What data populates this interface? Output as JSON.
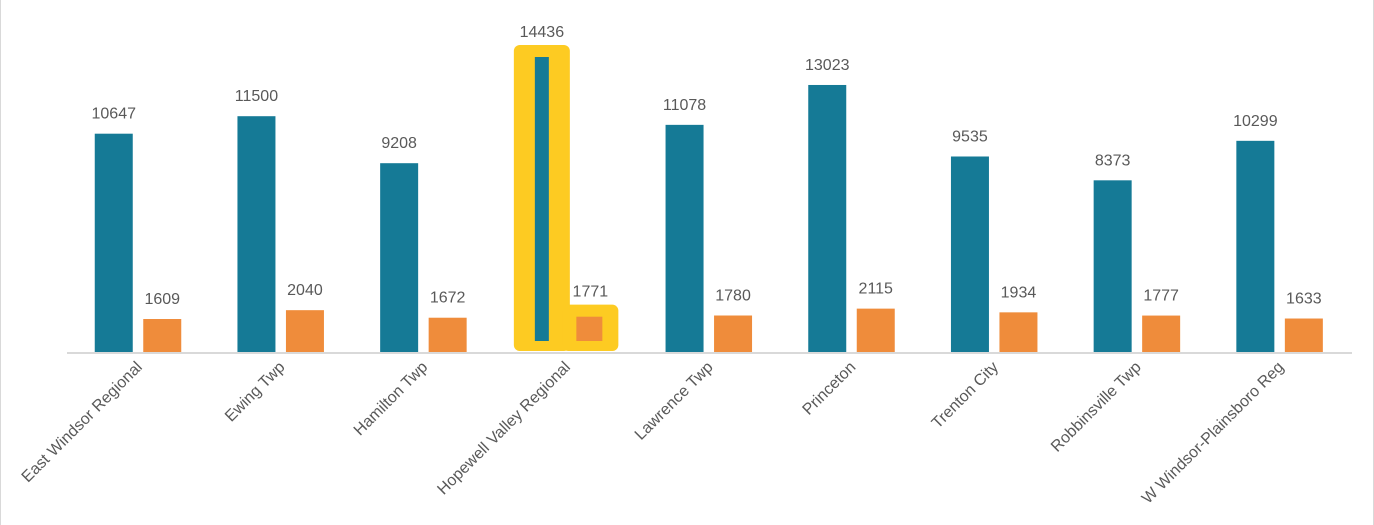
{
  "chart_data": {
    "type": "bar",
    "categories": [
      "East Windsor Regional",
      "Ewing Twp",
      "Hamilton Twp",
      "Hopewell Valley Regional",
      "Lawrence Twp",
      "Princeton",
      "Trenton City",
      "Robbinsville Twp",
      "W Windsor-Plainsboro Reg"
    ],
    "series": [
      {
        "values": [
          10647,
          11500,
          9208,
          14436,
          11078,
          13023,
          9535,
          8373,
          10299
        ],
        "color": "#157a96"
      },
      {
        "values": [
          1609,
          2040,
          1672,
          1771,
          1780,
          2115,
          1934,
          1777,
          1633
        ],
        "color": "#ef8c3b"
      }
    ],
    "highlight": {
      "category": "Hopewell Valley Regional",
      "color": "#fdcb22"
    },
    "data_labels": true,
    "legend": "none",
    "grid": false,
    "title": "",
    "xlabel": "",
    "ylabel": ""
  }
}
